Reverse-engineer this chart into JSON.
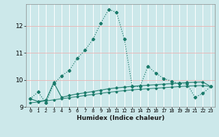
{
  "xlabel": "Humidex (Indice chaleur)",
  "x": [
    0,
    1,
    2,
    3,
    4,
    5,
    6,
    7,
    8,
    9,
    10,
    11,
    12,
    13,
    14,
    15,
    16,
    17,
    18,
    19,
    20,
    21,
    22,
    23
  ],
  "line1": [
    9.3,
    9.55,
    9.15,
    9.85,
    10.15,
    10.35,
    10.8,
    11.1,
    11.5,
    12.1,
    12.6,
    12.5,
    11.5,
    9.75,
    9.75,
    10.5,
    10.25,
    10.05,
    9.95,
    9.85,
    9.85,
    9.35,
    9.5,
    9.75
  ],
  "line2": [
    9.3,
    9.2,
    9.25,
    9.9,
    9.35,
    9.42,
    9.48,
    9.52,
    9.57,
    9.62,
    9.67,
    9.7,
    9.73,
    9.76,
    9.78,
    9.8,
    9.82,
    9.84,
    9.86,
    9.88,
    9.9,
    9.91,
    9.92,
    9.75
  ],
  "line3": [
    9.15,
    9.18,
    9.22,
    9.26,
    9.3,
    9.34,
    9.38,
    9.42,
    9.46,
    9.5,
    9.54,
    9.57,
    9.6,
    9.63,
    9.65,
    9.67,
    9.69,
    9.71,
    9.73,
    9.75,
    9.77,
    9.78,
    9.79,
    9.75
  ],
  "line_color": "#1a7a6a",
  "bg_color": "#cce8ea",
  "grid_color_major": "#e8b8b8",
  "grid_color_minor": "#ffffff",
  "ylim": [
    9.0,
    12.8
  ],
  "yticks": [
    9,
    10,
    11,
    12
  ],
  "xlim": [
    -0.5,
    23.5
  ]
}
